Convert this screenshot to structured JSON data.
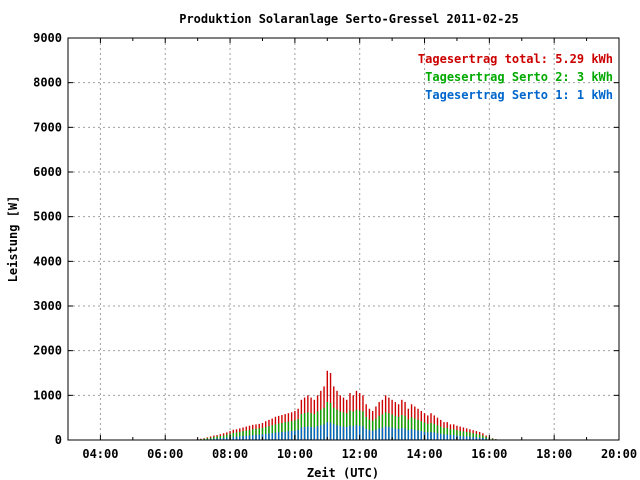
{
  "chart_data": {
    "type": "bar",
    "title": "Produktion Solaranlage Serto-Gressel 2011-02-25",
    "xlabel": "Zeit (UTC)",
    "ylabel": "Leistung [W]",
    "xlim": [
      3.0,
      20.0
    ],
    "ylim": [
      0,
      9000
    ],
    "grid": true,
    "legend_position": "top-right",
    "x_ticks": [
      4,
      6,
      8,
      10,
      12,
      14,
      16,
      18,
      20
    ],
    "x_tick_labels": [
      "04:00",
      "06:00",
      "08:00",
      "10:00",
      "12:00",
      "14:00",
      "16:00",
      "18:00",
      "20:00"
    ],
    "y_ticks": [
      0,
      1000,
      2000,
      3000,
      4000,
      5000,
      6000,
      7000,
      8000,
      9000
    ],
    "y_tick_labels": [
      "0",
      "1000",
      "2000",
      "3000",
      "4000",
      "5000",
      "6000",
      "7000",
      "8000",
      "9000"
    ],
    "legend": [
      {
        "label": "Tagesertrag total: 5.29 kWh",
        "color": "#cc0000"
      },
      {
        "label": "Tagesertrag Serto 2: 3 kWh",
        "color": "#00aa00"
      },
      {
        "label": "Tagesertrag Serto 1: 1 kWh",
        "color": "#0066cc"
      }
    ],
    "x": [
      7.0,
      7.1,
      7.2,
      7.3,
      7.4,
      7.5,
      7.6,
      7.7,
      7.8,
      7.9,
      8.0,
      8.1,
      8.2,
      8.3,
      8.4,
      8.5,
      8.6,
      8.7,
      8.8,
      8.9,
      9.0,
      9.1,
      9.2,
      9.3,
      9.4,
      9.5,
      9.6,
      9.7,
      9.8,
      9.9,
      10.0,
      10.1,
      10.2,
      10.3,
      10.4,
      10.5,
      10.6,
      10.7,
      10.8,
      10.9,
      11.0,
      11.1,
      11.2,
      11.3,
      11.4,
      11.5,
      11.6,
      11.7,
      11.8,
      11.9,
      12.0,
      12.1,
      12.2,
      12.3,
      12.4,
      12.5,
      12.6,
      12.7,
      12.8,
      12.9,
      13.0,
      13.1,
      13.2,
      13.3,
      13.4,
      13.5,
      13.6,
      13.7,
      13.8,
      13.9,
      14.0,
      14.1,
      14.2,
      14.3,
      14.4,
      14.5,
      14.6,
      14.7,
      14.8,
      14.9,
      15.0,
      15.1,
      15.2,
      15.3,
      15.4,
      15.5,
      15.6,
      15.7,
      15.8,
      15.9,
      16.0,
      16.1,
      16.2,
      16.3,
      16.4,
      16.5,
      16.6,
      16.7,
      16.8,
      16.9
    ],
    "series": [
      {
        "name": "Tagesertrag total: 5.29 kWh",
        "color": "#cc0000",
        "values": [
          20,
          30,
          40,
          60,
          80,
          100,
          110,
          130,
          150,
          170,
          200,
          230,
          240,
          260,
          280,
          300,
          320,
          340,
          350,
          360,
          380,
          420,
          450,
          480,
          520,
          540,
          560,
          580,
          600,
          620,
          650,
          700,
          900,
          950,
          1000,
          950,
          900,
          1000,
          1100,
          1200,
          1550,
          1500,
          1200,
          1100,
          1000,
          950,
          900,
          1050,
          1000,
          1100,
          1050,
          1000,
          800,
          700,
          650,
          750,
          850,
          900,
          1000,
          950,
          900,
          850,
          800,
          900,
          850,
          700,
          800,
          750,
          700,
          650,
          600,
          550,
          600,
          550,
          500,
          450,
          400,
          400,
          350,
          350,
          320,
          300,
          280,
          260,
          240,
          220,
          200,
          180,
          150,
          100,
          60,
          40,
          20,
          10,
          5,
          0,
          0,
          0,
          0,
          0
        ]
      },
      {
        "name": "Tagesertrag Serto 2: 3 kWh",
        "color": "#00aa00",
        "values": [
          10,
          20,
          30,
          40,
          50,
          70,
          80,
          90,
          100,
          120,
          140,
          160,
          170,
          180,
          200,
          210,
          220,
          240,
          250,
          260,
          270,
          290,
          310,
          330,
          350,
          370,
          380,
          400,
          410,
          420,
          440,
          470,
          580,
          600,
          620,
          600,
          580,
          640,
          680,
          720,
          850,
          830,
          720,
          680,
          640,
          620,
          600,
          660,
          640,
          680,
          660,
          640,
          520,
          460,
          430,
          480,
          540,
          570,
          620,
          600,
          570,
          540,
          520,
          560,
          540,
          460,
          510,
          480,
          450,
          420,
          390,
          360,
          380,
          360,
          330,
          300,
          270,
          270,
          240,
          240,
          220,
          200,
          190,
          180,
          170,
          150,
          140,
          120,
          100,
          70,
          40,
          30,
          15,
          8,
          3,
          0,
          0,
          0,
          0,
          0
        ]
      },
      {
        "name": "Tagesertrag Serto 1: 1 kWh",
        "color": "#0066cc",
        "values": [
          5,
          8,
          12,
          16,
          20,
          30,
          35,
          40,
          45,
          55,
          60,
          70,
          75,
          80,
          90,
          95,
          100,
          110,
          115,
          120,
          125,
          135,
          145,
          155,
          165,
          175,
          180,
          190,
          195,
          200,
          210,
          225,
          280,
          290,
          300,
          290,
          280,
          310,
          330,
          350,
          400,
          390,
          350,
          330,
          310,
          300,
          290,
          320,
          310,
          330,
          320,
          310,
          250,
          220,
          210,
          230,
          260,
          275,
          300,
          290,
          275,
          260,
          250,
          270,
          260,
          220,
          245,
          230,
          215,
          200,
          185,
          170,
          180,
          170,
          155,
          140,
          125,
          125,
          110,
          110,
          100,
          90,
          85,
          80,
          75,
          68,
          62,
          55,
          45,
          32,
          20,
          14,
          8,
          4,
          2,
          0,
          0,
          0,
          0,
          0
        ]
      }
    ]
  }
}
